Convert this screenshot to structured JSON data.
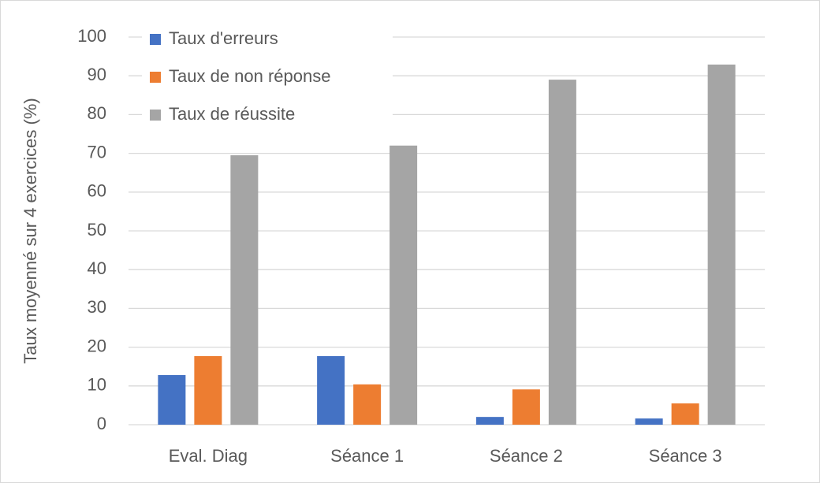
{
  "chart_data": {
    "type": "bar",
    "y_label": "Taux moyenné sur 4 exercices (%)",
    "categories": [
      "Eval. Diag",
      "Séance 1",
      "Séance 2",
      "Séance 3"
    ],
    "series": [
      {
        "name": "Taux d'erreurs",
        "color": "#4472c4",
        "values": [
          12.8,
          17.7,
          2.0,
          1.6
        ]
      },
      {
        "name": "Taux de non réponse",
        "color": "#ed7d31",
        "values": [
          17.7,
          10.4,
          9.1,
          5.5
        ]
      },
      {
        "name": "Taux de réussite",
        "color": "#a5a5a5",
        "values": [
          69.5,
          72.0,
          89.0,
          92.9
        ]
      }
    ],
    "ylim": [
      0,
      100
    ],
    "yticks": [
      0,
      10,
      20,
      30,
      40,
      50,
      60,
      70,
      80,
      90,
      100
    ],
    "grid": true,
    "legend": "top-left"
  }
}
